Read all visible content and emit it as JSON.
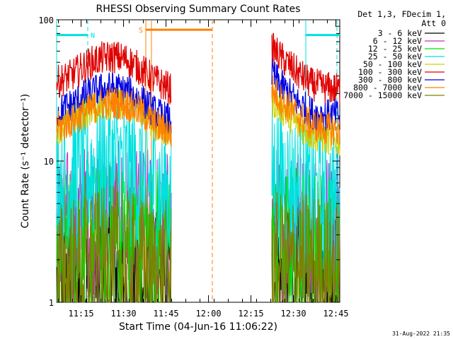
{
  "chart_data": {
    "type": "line",
    "title": "RHESSI Observing Summary Count Rates",
    "xlabel": "Start Time (04-Jun-16 11:06:22)",
    "ylabel": "Count Rate (s⁻¹ detector⁻¹)",
    "y_scale": "log",
    "ylim": [
      1,
      100
    ],
    "xlim_minutes_after_11_06_22": [
      0,
      100
    ],
    "x_tick_labels": [
      "11:15",
      "11:30",
      "11:45",
      "12:00",
      "12:15",
      "12:30",
      "12:45"
    ],
    "y_tick_labels": [
      "1",
      "10",
      "100"
    ],
    "legend_header": [
      "Det 1,3, FDecim 1,",
      "Att 0"
    ],
    "legend_placement": "right, outside plot",
    "series": [
      {
        "name": "3 - 6 keV",
        "color": "#000000",
        "segments": [
          {
            "x": [
              0,
              10,
              20,
              30,
              40.5
            ],
            "y": [
              1.2,
              1.3,
              1.5,
              1.3,
              1.2
            ]
          },
          {
            "x": [
              76,
              86,
              93,
              100
            ],
            "y": [
              1.4,
              1.5,
              1.4,
              1.3
            ]
          }
        ]
      },
      {
        "name": "6 - 12 keV",
        "color": "#c030c0",
        "segments": [
          {
            "x": [
              0,
              10,
              20,
              30,
              40.5
            ],
            "y": [
              3.4,
              3.8,
              4.0,
              3.6,
              3.4
            ]
          },
          {
            "x": [
              76,
              86,
              93,
              100
            ],
            "y": [
              3.6,
              3.7,
              3.6,
              3.5
            ]
          }
        ]
      },
      {
        "name": "12 - 25 keV",
        "color": "#00e000",
        "segments": [
          {
            "x": [
              0,
              10,
              20,
              30,
              40.5
            ],
            "y": [
              2.6,
              2.9,
              3.0,
              2.8,
              2.6
            ]
          },
          {
            "x": [
              76,
              86,
              93,
              100
            ],
            "y": [
              2.7,
              2.8,
              2.7,
              2.6
            ]
          }
        ]
      },
      {
        "name": "25 - 50 keV",
        "color": "#00e0e0",
        "segments": [
          {
            "x": [
              0,
              10,
              20,
              30,
              40.5
            ],
            "y": [
              6.5,
              8.5,
              9.5,
              7.5,
              5.5
            ]
          },
          {
            "x": [
              76,
              83,
              93,
              100
            ],
            "y": [
              8.5,
              6.5,
              5.2,
              4.9
            ]
          }
        ]
      },
      {
        "name": "50 - 100 keV",
        "color": "#d0d000",
        "segments": [
          {
            "x": [
              0,
              5,
              10,
              15,
              20,
              25,
              30,
              35,
              40.5
            ],
            "y": [
              17,
              19,
              22,
              25,
              26,
              25,
              22,
              18,
              15
            ]
          },
          {
            "x": [
              76,
              80,
              85,
              90,
              95,
              100
            ],
            "y": [
              27,
              23,
              18,
              15.5,
              14.5,
              14
            ]
          }
        ]
      },
      {
        "name": "100 - 300 keV",
        "color": "#e00000",
        "segments": [
          {
            "x": [
              0,
              5,
              10,
              15,
              20,
              25,
              30,
              35,
              40.5
            ],
            "y": [
              36,
              40,
              47,
              53,
              55,
              52,
              44,
              37,
              32
            ]
          },
          {
            "x": [
              76,
              80,
              85,
              90,
              95,
              100
            ],
            "y": [
              63,
              52,
              42,
              35,
              33,
              32
            ]
          }
        ]
      },
      {
        "name": "300 - 800 keV",
        "color": "#0000e0",
        "segments": [
          {
            "x": [
              0,
              5,
              10,
              15,
              20,
              25,
              30,
              35,
              40.5
            ],
            "y": [
              22,
              25,
              29,
              32,
              33,
              31,
              27,
              22,
              19
            ]
          },
          {
            "x": [
              76,
              80,
              85,
              90,
              95,
              100
            ],
            "y": [
              41,
              33,
              26,
              22,
              21,
              21
            ]
          }
        ]
      },
      {
        "name": "800 - 7000 keV",
        "color": "#ff8000",
        "segments": [
          {
            "x": [
              0,
              5,
              10,
              15,
              20,
              25,
              30,
              35,
              40.5
            ],
            "y": [
              17,
              19,
              22,
              25,
              26,
              25,
              22,
              18,
              15.5
            ]
          },
          {
            "x": [
              76,
              80,
              85,
              90,
              95,
              100
            ],
            "y": [
              32,
              26,
              21,
              18,
              17,
              16.5
            ]
          }
        ]
      },
      {
        "name": "7000 - 15000 keV",
        "color": "#808000",
        "segments": [
          {
            "x": [
              0,
              10,
              20,
              30,
              40.5
            ],
            "y": [
              1.5,
              1.7,
              1.9,
              1.6,
              1.5
            ]
          },
          {
            "x": [
              76,
              86,
              93,
              100
            ],
            "y": [
              1.7,
              1.8,
              1.7,
              1.6
            ]
          }
        ]
      }
    ],
    "flags": [
      {
        "label": "N",
        "color": "#00e0e0",
        "x_start": 0,
        "x_end": 11,
        "level_y": 78
      },
      {
        "label": "S",
        "color": "#ff8000",
        "x_start": 31.5,
        "x_end": 55,
        "level_y": 85
      },
      {
        "label": "",
        "color": "#00e0e0",
        "x_start": 88,
        "x_end": 100,
        "level_y": 78
      }
    ],
    "boundaries": [
      {
        "x": 0,
        "color": "#00e0e0",
        "style": "solid"
      },
      {
        "x": 11,
        "color": "#00e0e0",
        "style": "dashed"
      },
      {
        "x": 31.5,
        "color": "#ff8000",
        "style": "solid"
      },
      {
        "x": 33.5,
        "color": "#ff8000",
        "style": "solid"
      },
      {
        "x": 55,
        "color": "#ff8000",
        "style": "dashed"
      },
      {
        "x": 88,
        "color": "#00e0e0",
        "style": "solid"
      },
      {
        "x": 99,
        "color": "#00e0e0",
        "style": "dashed"
      }
    ],
    "grid": false
  },
  "footer_timestamp": "31-Aug-2022 21:35"
}
